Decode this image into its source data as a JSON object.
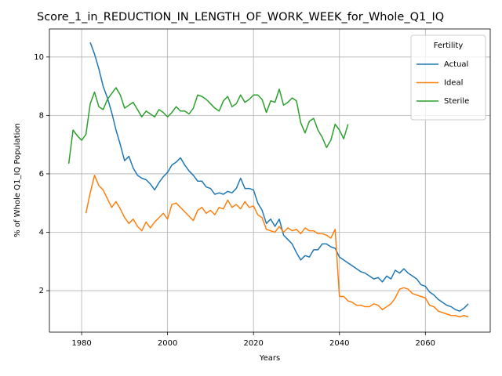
{
  "chart_data": {
    "type": "line",
    "title": "Score_1_in_REDUCTION_IN_LENGTH_OF_WORK_WEEK_for_Whole_Q1_IQ",
    "xlabel": "Years",
    "ylabel": "% of Whole Q1_IQ Population",
    "legend_title": "Fertility",
    "legend": "upper right",
    "grid": true,
    "xlim": [
      1972.5,
      2075.1
    ],
    "ylim": [
      0.58,
      10.96
    ],
    "xticks": [
      1980,
      2000,
      2020,
      2040,
      2060
    ],
    "yticks": [
      2,
      4,
      6,
      8,
      10
    ],
    "x": [
      1977,
      1978,
      1979,
      1980,
      1981,
      1982,
      1983,
      1984,
      1985,
      1986,
      1987,
      1988,
      1989,
      1990,
      1991,
      1992,
      1993,
      1994,
      1995,
      1996,
      1997,
      1998,
      1999,
      2000,
      2001,
      2002,
      2003,
      2004,
      2005,
      2006,
      2007,
      2008,
      2009,
      2010,
      2011,
      2012,
      2013,
      2014,
      2015,
      2016,
      2017,
      2018,
      2019,
      2020,
      2021,
      2022,
      2023,
      2024,
      2025,
      2026,
      2027,
      2028,
      2029,
      2030,
      2031,
      2032,
      2033,
      2034,
      2035,
      2036,
      2037,
      2038,
      2039,
      2040,
      2041,
      2042,
      2043,
      2044,
      2045,
      2046,
      2047,
      2048,
      2049,
      2050,
      2051,
      2052,
      2053,
      2054,
      2055,
      2056,
      2057,
      2058,
      2059,
      2060,
      2061,
      2062,
      2063,
      2064,
      2065,
      2066,
      2067,
      2068,
      2069,
      2070
    ],
    "series": [
      {
        "name": "Actual",
        "color": "#1f77b4",
        "values": [
          null,
          null,
          null,
          null,
          null,
          10.5,
          10.1,
          9.6,
          9.0,
          8.6,
          8.1,
          7.5,
          7.0,
          6.45,
          6.6,
          6.2,
          5.95,
          5.85,
          5.8,
          5.65,
          5.45,
          5.7,
          5.9,
          6.05,
          6.3,
          6.4,
          6.55,
          6.3,
          6.1,
          5.95,
          5.75,
          5.75,
          5.55,
          5.5,
          5.3,
          5.35,
          5.3,
          5.4,
          5.35,
          5.5,
          5.85,
          5.5,
          5.5,
          5.45,
          5.0,
          4.75,
          4.3,
          4.45,
          4.2,
          4.45,
          3.9,
          3.75,
          3.6,
          3.3,
          3.05,
          3.2,
          3.15,
          3.4,
          3.4,
          3.6,
          3.6,
          3.5,
          3.45,
          3.15,
          3.05,
          2.95,
          2.85,
          2.75,
          2.65,
          2.6,
          2.5,
          2.4,
          2.45,
          2.3,
          2.5,
          2.4,
          2.7,
          2.6,
          2.75,
          2.6,
          2.5,
          2.4,
          2.2,
          2.15,
          1.95,
          1.85,
          1.7,
          1.6,
          1.5,
          1.45,
          1.35,
          1.3,
          1.4,
          1.55
        ]
      },
      {
        "name": "Ideal",
        "color": "#ff7f0e",
        "values": [
          null,
          null,
          null,
          null,
          4.65,
          5.35,
          5.95,
          5.6,
          5.45,
          5.15,
          4.85,
          5.05,
          4.8,
          4.5,
          4.3,
          4.45,
          4.2,
          4.05,
          4.35,
          4.15,
          4.35,
          4.5,
          4.65,
          4.45,
          4.95,
          5.0,
          4.85,
          4.7,
          4.55,
          4.4,
          4.75,
          4.85,
          4.65,
          4.75,
          4.6,
          4.85,
          4.8,
          5.1,
          4.85,
          4.95,
          4.8,
          5.05,
          4.85,
          4.9,
          4.6,
          4.5,
          4.1,
          4.05,
          4.0,
          4.2,
          4.0,
          4.15,
          4.05,
          4.1,
          3.95,
          4.15,
          4.05,
          4.05,
          3.95,
          3.95,
          3.9,
          3.8,
          4.1,
          1.8,
          1.8,
          1.65,
          1.6,
          1.5,
          1.5,
          1.45,
          1.45,
          1.55,
          1.5,
          1.35,
          1.45,
          1.55,
          1.75,
          2.05,
          2.1,
          2.05,
          1.9,
          1.85,
          1.8,
          1.75,
          1.5,
          1.45,
          1.3,
          1.25,
          1.2,
          1.15,
          1.15,
          1.1,
          1.15,
          1.1
        ]
      },
      {
        "name": "Sterile",
        "color": "#2ca02c",
        "values": [
          6.35,
          7.5,
          7.3,
          7.15,
          7.35,
          8.4,
          8.8,
          8.3,
          8.2,
          8.55,
          8.75,
          8.95,
          8.7,
          8.25,
          8.35,
          8.45,
          8.2,
          7.95,
          8.15,
          8.05,
          7.95,
          8.2,
          8.1,
          7.95,
          8.1,
          8.3,
          8.15,
          8.15,
          8.05,
          8.25,
          8.7,
          8.65,
          8.55,
          8.4,
          8.25,
          8.15,
          8.5,
          8.65,
          8.3,
          8.4,
          8.7,
          8.45,
          8.55,
          8.7,
          8.7,
          8.55,
          8.1,
          8.5,
          8.45,
          8.9,
          8.35,
          8.45,
          8.6,
          8.5,
          7.75,
          7.4,
          7.8,
          7.9,
          7.5,
          7.25,
          6.9,
          7.15,
          7.7,
          7.5,
          7.2,
          7.7,
          null,
          null,
          null,
          null,
          null,
          null,
          null,
          null,
          null,
          null,
          null,
          null,
          null,
          null,
          null,
          null,
          null,
          null,
          null,
          null,
          null,
          null,
          null,
          null,
          null,
          null,
          null,
          null
        ]
      }
    ]
  }
}
